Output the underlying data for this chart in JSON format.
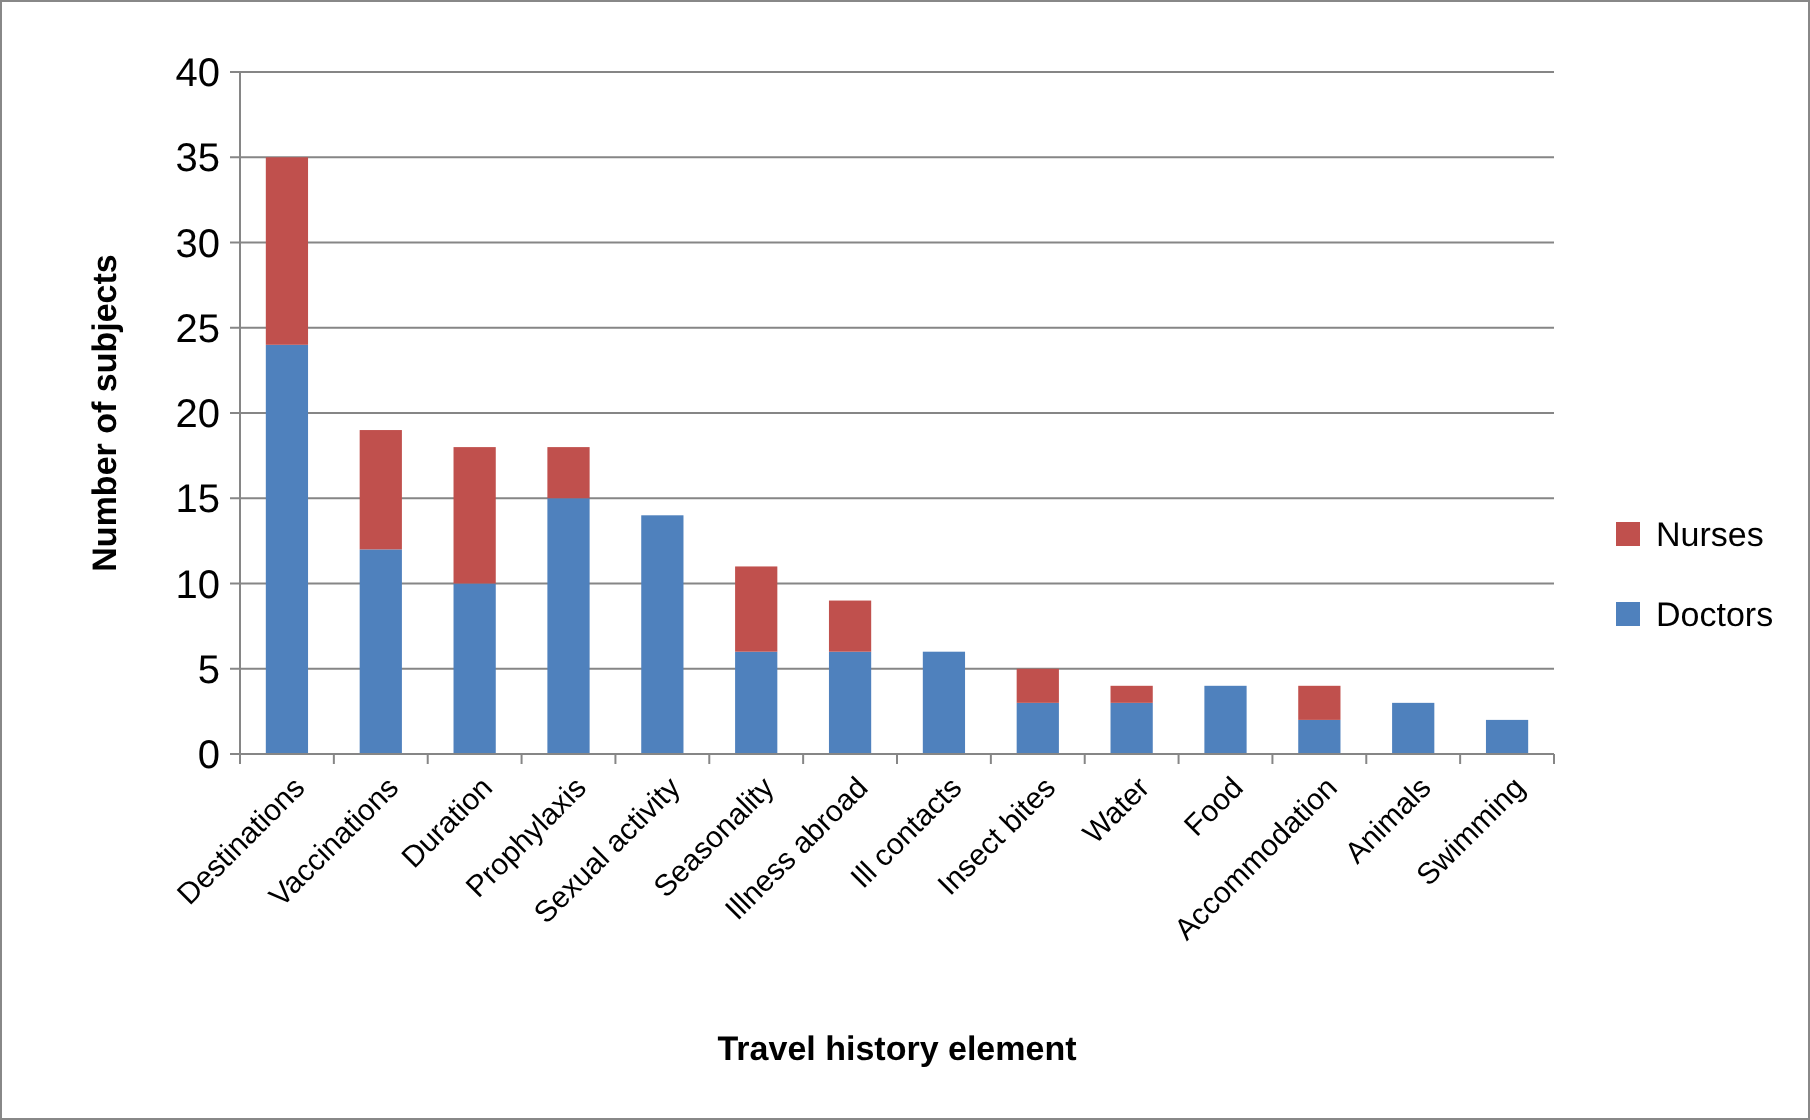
{
  "chart_data": {
    "type": "bar",
    "stacked": true,
    "xlabel": "Travel history element",
    "ylabel": "Number of subjects",
    "categories": [
      "Destinations",
      "Vaccinations",
      "Duration",
      "Prophylaxis",
      "Sexual activity",
      "Seasonality",
      "Illness abroad",
      "Ill contacts",
      "Insect bites",
      "Water",
      "Food",
      "Accommodation",
      "Animals",
      "Swimming"
    ],
    "series": [
      {
        "name": "Doctors",
        "color": "#4f81bd",
        "values": [
          24,
          12,
          10,
          15,
          14,
          6,
          6,
          6,
          3,
          3,
          4,
          2,
          3,
          2
        ]
      },
      {
        "name": "Nurses",
        "color": "#c0504d",
        "values": [
          11,
          7,
          8,
          3,
          null,
          5,
          3,
          null,
          2,
          1,
          null,
          2,
          null,
          null
        ]
      }
    ],
    "ylim": [
      0,
      40
    ],
    "yticks": [
      0,
      5,
      10,
      15,
      20,
      25,
      30,
      35,
      40
    ],
    "grid": "y",
    "legend": "right"
  }
}
